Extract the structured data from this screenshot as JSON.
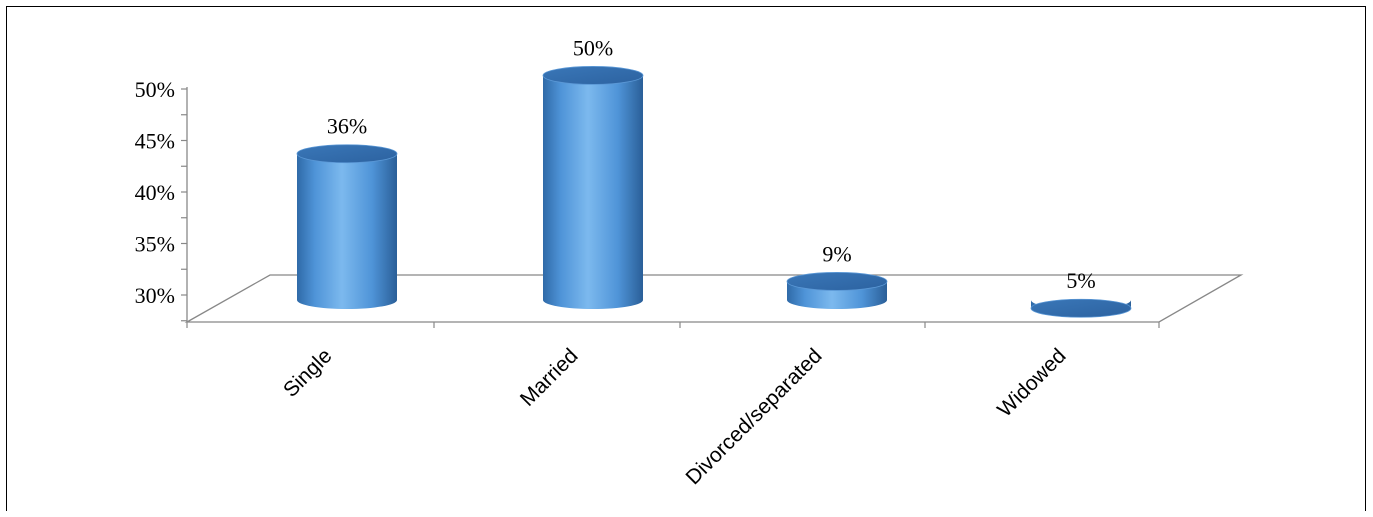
{
  "chart_data": {
    "type": "bar",
    "title": "",
    "xlabel": "",
    "ylabel": "",
    "categories": [
      "Single",
      "Married",
      "Divorced/separated",
      "Widowed"
    ],
    "values": [
      36,
      50,
      9,
      5
    ],
    "data_labels": [
      "36%",
      "50%",
      "9%",
      "5%"
    ],
    "y_ticks": [
      "30%",
      "35%",
      "40%",
      "45%",
      "50%"
    ],
    "bar_heights_on_axis": [
      44.2,
      51.8,
      31.8,
      29.2
    ],
    "ylim": [
      28,
      50
    ],
    "grid": false,
    "legend": "none",
    "colors": {
      "bar_light": "#7cb9ee",
      "bar_mid": "#4f94d8",
      "bar_dark": "#2f6aa8",
      "bar_top": "#3a77b8",
      "axis": "#888888"
    }
  }
}
